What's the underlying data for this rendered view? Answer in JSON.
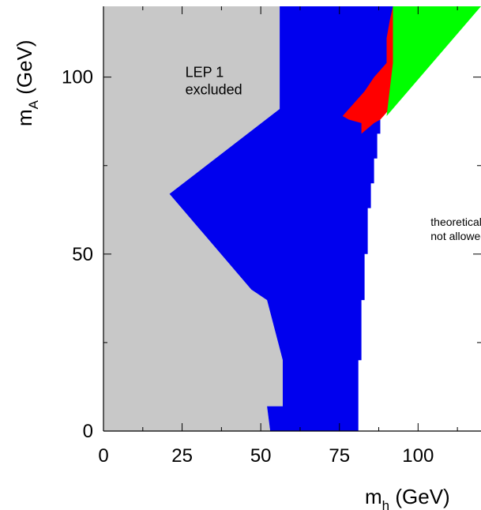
{
  "chart_data": {
    "type": "area",
    "xlabel": {
      "main": "m",
      "sub": "h",
      "unit": " (GeV)"
    },
    "ylabel": {
      "main": "m",
      "sub": "A",
      "unit": " (GeV)"
    },
    "xlim": [
      0,
      120
    ],
    "ylim": [
      0,
      120
    ],
    "x_ticks": [
      "0",
      "25",
      "50",
      "75",
      "100"
    ],
    "x_tick_values": [
      0,
      25,
      50,
      75,
      100
    ],
    "y_ticks": [
      "0",
      "50",
      "100"
    ],
    "y_tick_values": [
      0,
      50,
      100
    ],
    "grid": false,
    "regions": [
      {
        "name": "LEP 1 excluded",
        "color": "#c8c8c8",
        "points": [
          [
            0,
            0
          ],
          [
            53,
            0
          ],
          [
            52,
            7
          ],
          [
            57,
            7
          ],
          [
            57,
            20
          ],
          [
            52,
            37
          ],
          [
            47,
            40
          ],
          [
            21,
            67
          ],
          [
            56,
            91
          ],
          [
            56,
            120
          ],
          [
            0,
            120
          ]
        ]
      },
      {
        "name": "blue",
        "color": "#0000ee",
        "points": [
          [
            53,
            0
          ],
          [
            81,
            0
          ],
          [
            81,
            20
          ],
          [
            82,
            20
          ],
          [
            82,
            37
          ],
          [
            83,
            37
          ],
          [
            83,
            50
          ],
          [
            84,
            50
          ],
          [
            84,
            63
          ],
          [
            85,
            63
          ],
          [
            85,
            70
          ],
          [
            86,
            70
          ],
          [
            86,
            77
          ],
          [
            87,
            77
          ],
          [
            87,
            84
          ],
          [
            88,
            84
          ],
          [
            88,
            89
          ],
          [
            89,
            89
          ],
          [
            90,
            92
          ],
          [
            92,
            104
          ],
          [
            92,
            120
          ],
          [
            56,
            120
          ],
          [
            56,
            91
          ],
          [
            21,
            67
          ],
          [
            47,
            40
          ],
          [
            52,
            37
          ],
          [
            57,
            20
          ],
          [
            57,
            7
          ],
          [
            52,
            7
          ]
        ]
      },
      {
        "name": "red",
        "color": "#ff0000",
        "points": [
          [
            76,
            89
          ],
          [
            79,
            92
          ],
          [
            83,
            96
          ],
          [
            86,
            100
          ],
          [
            90,
            104
          ],
          [
            90,
            111
          ],
          [
            91,
            116
          ],
          [
            92,
            120
          ],
          [
            93,
            120
          ],
          [
            93,
            102
          ],
          [
            92,
            94
          ],
          [
            91,
            91
          ],
          [
            88,
            88
          ],
          [
            86,
            87
          ],
          [
            82,
            84
          ],
          [
            82,
            87
          ],
          [
            78,
            88
          ]
        ]
      },
      {
        "name": "green",
        "color": "#00ff00",
        "points": [
          [
            92,
            120
          ],
          [
            120,
            120
          ],
          [
            90,
            89
          ],
          [
            92,
            104
          ]
        ]
      }
    ],
    "annotations": [
      {
        "lines": [
          "LEP 1",
          "excluded"
        ],
        "x": 26,
        "y": 100,
        "size": "large"
      },
      {
        "lines": [
          "theoretically",
          "not allowed"
        ],
        "x": 104,
        "y": 58,
        "size": "small"
      }
    ]
  }
}
